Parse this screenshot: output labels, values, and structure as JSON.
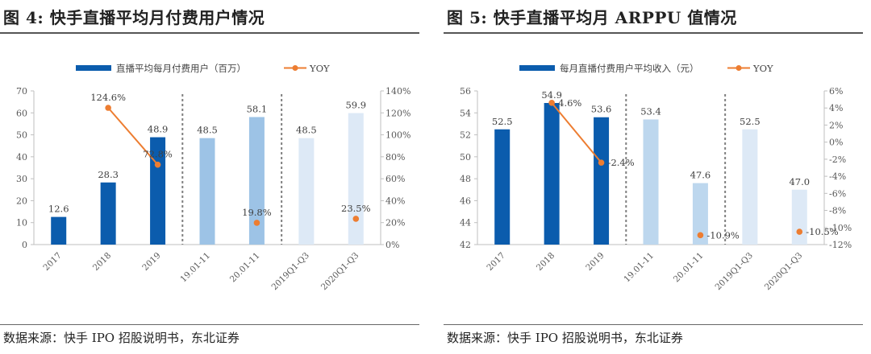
{
  "panels": [
    {
      "title": "图 4: 快手直播平均月付费用户情况",
      "source": "数据来源：快手 IPO 招股说明书，东北证券",
      "chart_data": {
        "type": "bar",
        "categories": [
          "2017",
          "2018",
          "2019",
          "19.01-11",
          "20.01-11",
          "2019Q1-Q3",
          "2020Q1-Q3"
        ],
        "series": [
          {
            "name": "直播平均每月付费用户（百万）",
            "values": [
              12.6,
              28.3,
              48.9,
              48.5,
              58.1,
              48.5,
              59.9
            ],
            "labels": [
              "12.6",
              "28.3",
              "48.9",
              "48.5",
              "58.1",
              "48.5",
              "59.9"
            ]
          },
          {
            "name": "YOY",
            "type": "line",
            "axis": "right",
            "values": [
              null,
              124.6,
              72.8,
              null,
              19.8,
              null,
              23.5
            ],
            "labels": [
              "",
              "124.6%",
              "72.8%",
              "",
              "19.8%",
              "",
              "23.5%"
            ]
          }
        ],
        "bar_colors": [
          "#0b5cad",
          "#0b5cad",
          "#0b5cad",
          "#9dc3e6",
          "#9dc3e6",
          "#dde9f6",
          "#dde9f6"
        ],
        "line_color": "#ed7d31",
        "ylim": [
          0,
          70
        ],
        "yticks": [
          "0",
          "10",
          "20",
          "30",
          "40",
          "50",
          "60",
          "70"
        ],
        "y2lim": [
          0,
          140
        ],
        "y2ticks": [
          "0%",
          "20%",
          "40%",
          "60%",
          "80%",
          "100%",
          "120%",
          "140%"
        ],
        "separators_after": [
          2,
          4
        ],
        "legend_position": "top"
      }
    },
    {
      "title": "图 5: 快手直播平均月 ARPPU 值情况",
      "source": "数据来源：快手 IPO 招股说明书，东北证券",
      "chart_data": {
        "type": "bar",
        "categories": [
          "2017",
          "2018",
          "2019",
          "19.01-11",
          "20.01-11",
          "2019Q1-Q3",
          "2020Q1-Q3"
        ],
        "series": [
          {
            "name": "每月直播付费用户平均收入（元）",
            "values": [
              52.5,
              54.9,
              53.6,
              53.4,
              47.6,
              52.5,
              47.0
            ],
            "labels": [
              "52.5",
              "54.9",
              "53.6",
              "53.4",
              "47.6",
              "52.5",
              "47.0"
            ]
          },
          {
            "name": "YOY",
            "type": "line",
            "axis": "right",
            "values": [
              null,
              4.6,
              -2.4,
              null,
              -10.9,
              null,
              -10.5
            ],
            "labels": [
              "",
              "4.6%",
              "-2.4%",
              "",
              "-10.9%",
              "",
              "-10.5%"
            ]
          }
        ],
        "bar_colors": [
          "#0b5cad",
          "#0b5cad",
          "#0b5cad",
          "#bdd7ee",
          "#bdd7ee",
          "#dde9f6",
          "#dde9f6"
        ],
        "line_color": "#ed7d31",
        "ylim": [
          42,
          56
        ],
        "yticks": [
          "42",
          "44",
          "46",
          "48",
          "50",
          "52",
          "54",
          "56"
        ],
        "y2lim": [
          -12,
          6
        ],
        "y2ticks": [
          "-12%",
          "-10%",
          "-8%",
          "-6%",
          "-4%",
          "-2%",
          "0%",
          "2%",
          "4%",
          "6%"
        ],
        "separators_after": [
          2,
          4
        ],
        "legend_position": "top"
      }
    }
  ]
}
